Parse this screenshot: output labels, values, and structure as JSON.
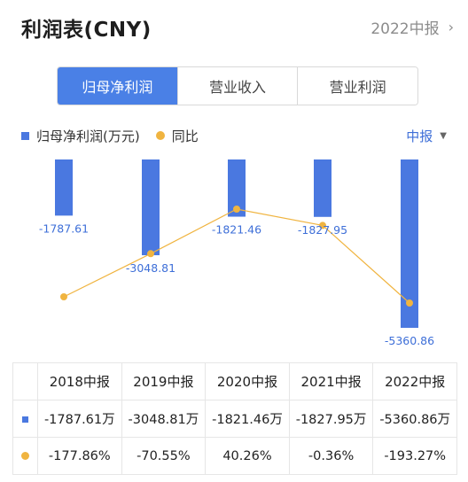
{
  "header": {
    "title": "利润表(CNY)",
    "period": "2022中报",
    "chevron_icon": "chevron-right-icon"
  },
  "tabs": [
    {
      "label": "归母净利润",
      "active": true
    },
    {
      "label": "营业收入",
      "active": false
    },
    {
      "label": "营业利润",
      "active": false
    }
  ],
  "legend": {
    "bar_label": "归母净利润(万元)",
    "line_label": "同比"
  },
  "period_select": {
    "value": "中报",
    "caret_icon": "caret-down-icon"
  },
  "colors": {
    "bar": "#4a78e0",
    "line": "#f0b440",
    "label": "#3e6fd8",
    "positive": "#d24141",
    "negative": "#2f9a54",
    "accent": "#4a80e6"
  },
  "chart_data": {
    "type": "bar",
    "categories": [
      "2018中报",
      "2019中报",
      "2020中报",
      "2021中报",
      "2022中报"
    ],
    "series": [
      {
        "name": "归母净利润(万元)",
        "type": "bar",
        "values": [
          -1787.61,
          -3048.81,
          -1821.46,
          -1827.95,
          -5360.86
        ],
        "labels": [
          "-1787.61",
          "-3048.81",
          "-1821.46",
          "-1827.95",
          "-5360.86"
        ]
      },
      {
        "name": "同比",
        "type": "line",
        "values": [
          -177.86,
          -70.55,
          40.26,
          -0.36,
          -193.27
        ]
      }
    ],
    "legend_position": "top-left"
  },
  "table": {
    "headers": [
      "2018中报",
      "2019中报",
      "2020中报",
      "2021中报",
      "2022中报"
    ],
    "profit_row": [
      "-1787.61万",
      "-3048.81万",
      "-1821.46万",
      "-1827.95万",
      "-5360.86万"
    ],
    "yoy_row": [
      "-177.86%",
      "-70.55%",
      "40.26%",
      "-0.36%",
      "-193.27%"
    ]
  }
}
